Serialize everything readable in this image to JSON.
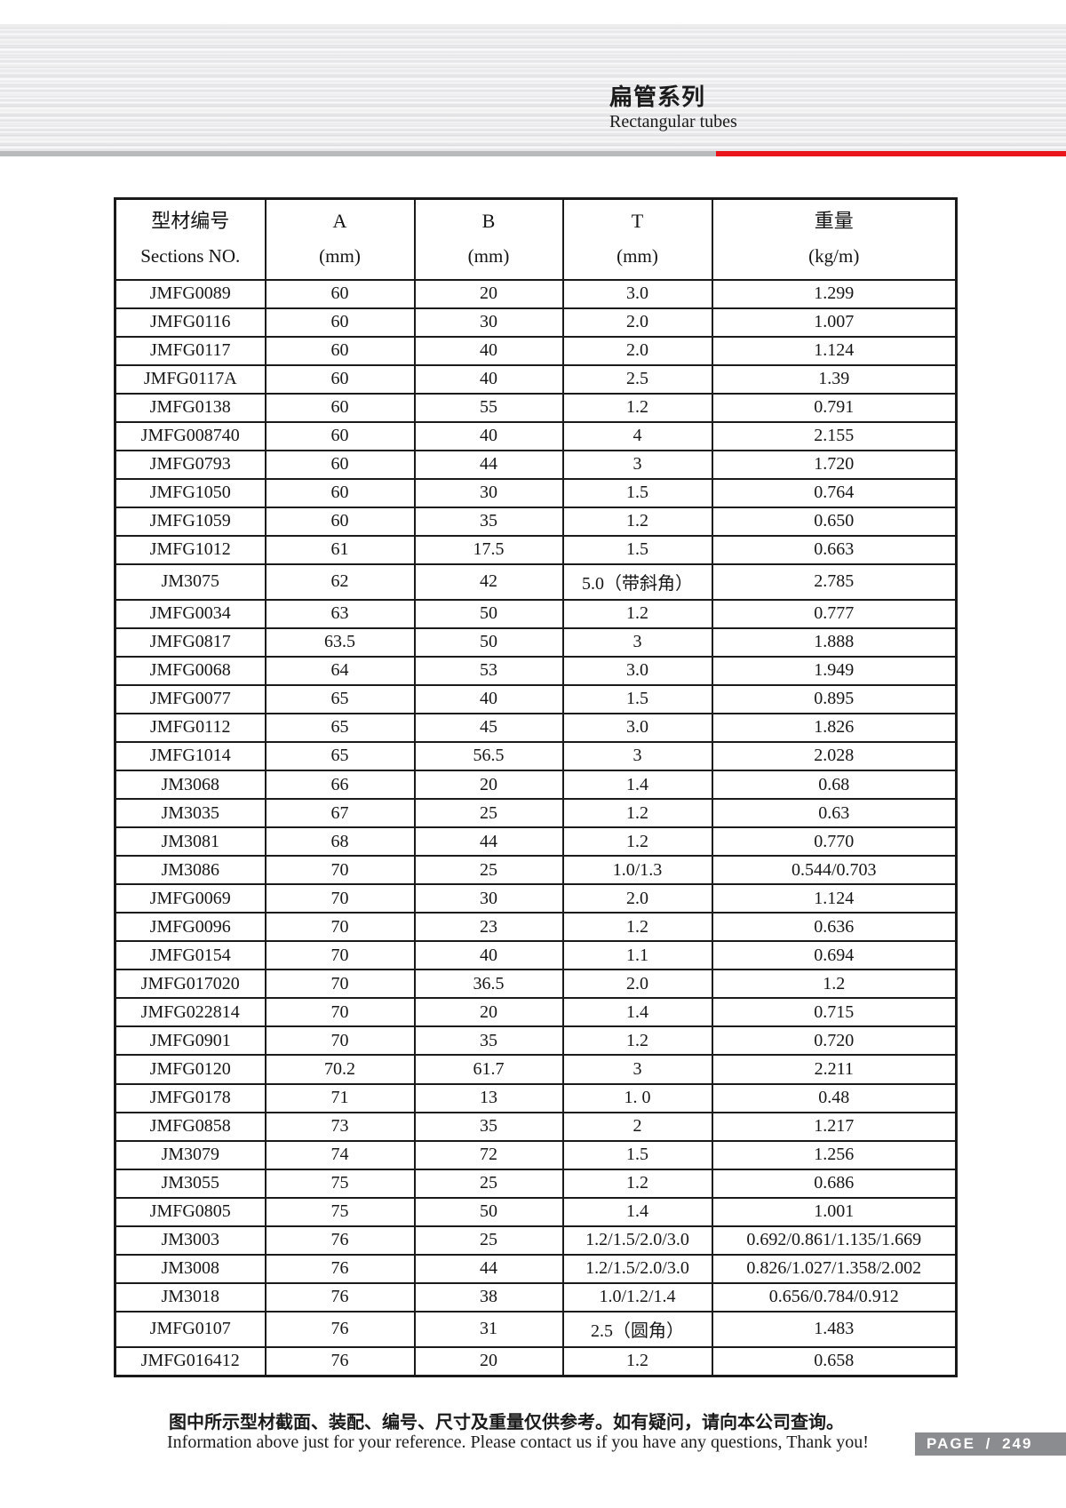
{
  "header": {
    "title_cn": "扁管系列",
    "title_en": "Rectangular tubes"
  },
  "table": {
    "columns": [
      {
        "line1": "型材编号",
        "line2": "Sections NO."
      },
      {
        "line1": "A",
        "line2": "(mm)"
      },
      {
        "line1": "B",
        "line2": "(mm)"
      },
      {
        "line1": "T",
        "line2": "(mm)"
      },
      {
        "line1": "重量",
        "line2": "(kg/m)"
      }
    ],
    "rows": [
      [
        "JMFG0089",
        "60",
        "20",
        "3.0",
        "1.299"
      ],
      [
        "JMFG0116",
        "60",
        "30",
        "2.0",
        "1.007"
      ],
      [
        "JMFG0117",
        "60",
        "40",
        "2.0",
        "1.124"
      ],
      [
        "JMFG0117A",
        "60",
        "40",
        "2.5",
        "1.39"
      ],
      [
        "JMFG0138",
        "60",
        "55",
        "1.2",
        "0.791"
      ],
      [
        "JMFG008740",
        "60",
        "40",
        "4",
        "2.155"
      ],
      [
        "JMFG0793",
        "60",
        "44",
        "3",
        "1.720"
      ],
      [
        "JMFG1050",
        "60",
        "30",
        "1.5",
        "0.764"
      ],
      [
        "JMFG1059",
        "60",
        "35",
        "1.2",
        "0.650"
      ],
      [
        "JMFG1012",
        "61",
        "17.5",
        "1.5",
        "0.663"
      ],
      [
        "JM3075",
        "62",
        "42",
        "5.0（带斜角）",
        "2.785"
      ],
      [
        "JMFG0034",
        "63",
        "50",
        "1.2",
        "0.777"
      ],
      [
        "JMFG0817",
        "63.5",
        "50",
        "3",
        "1.888"
      ],
      [
        "JMFG0068",
        "64",
        "53",
        "3.0",
        "1.949"
      ],
      [
        "JMFG0077",
        "65",
        "40",
        "1.5",
        "0.895"
      ],
      [
        "JMFG0112",
        "65",
        "45",
        "3.0",
        "1.826"
      ],
      [
        "JMFG1014",
        "65",
        "56.5",
        "3",
        "2.028"
      ],
      [
        "JM3068",
        "66",
        "20",
        "1.4",
        "0.68"
      ],
      [
        "JM3035",
        "67",
        "25",
        "1.2",
        "0.63"
      ],
      [
        "JM3081",
        "68",
        "44",
        "1.2",
        "0.770"
      ],
      [
        "JM3086",
        "70",
        "25",
        "1.0/1.3",
        "0.544/0.703"
      ],
      [
        "JMFG0069",
        "70",
        "30",
        "2.0",
        "1.124"
      ],
      [
        "JMFG0096",
        "70",
        "23",
        "1.2",
        "0.636"
      ],
      [
        "JMFG0154",
        "70",
        "40",
        "1.1",
        "0.694"
      ],
      [
        "JMFG017020",
        "70",
        "36.5",
        "2.0",
        "1.2"
      ],
      [
        "JMFG022814",
        "70",
        "20",
        "1.4",
        "0.715"
      ],
      [
        "JMFG0901",
        "70",
        "35",
        "1.2",
        "0.720"
      ],
      [
        "JMFG0120",
        "70.2",
        "61.7",
        "3",
        "2.211"
      ],
      [
        "JMFG0178",
        "71",
        "13",
        "1. 0",
        "0.48"
      ],
      [
        "JMFG0858",
        "73",
        "35",
        "2",
        "1.217"
      ],
      [
        "JM3079",
        "74",
        "72",
        "1.5",
        "1.256"
      ],
      [
        "JM3055",
        "75",
        "25",
        "1.2",
        "0.686"
      ],
      [
        "JMFG0805",
        "75",
        "50",
        "1.4",
        "1.001"
      ],
      [
        "JM3003",
        "76",
        "25",
        "1.2/1.5/2.0/3.0",
        "0.692/0.861/1.135/1.669"
      ],
      [
        "JM3008",
        "76",
        "44",
        "1.2/1.5/2.0/3.0",
        "0.826/1.027/1.358/2.002"
      ],
      [
        "JM3018",
        "76",
        "38",
        "1.0/1.2/1.4",
        "0.656/0.784/0.912"
      ],
      [
        "JMFG0107",
        "76",
        "31",
        "2.5（圆角）",
        "1.483"
      ],
      [
        "JMFG016412",
        "76",
        "20",
        "1.2",
        "0.658"
      ]
    ]
  },
  "footer": {
    "note_cn": "图中所示型材截面、装配、编号、尺寸及重量仅供参考。如有疑问，请向本公司查询。",
    "note_en": "Information above just for your reference. Please contact us if you have any questions, Thank you!",
    "page_label": "PAGE / 249"
  },
  "colors": {
    "divider_gray": "#b9babc",
    "accent_red": "#e9151b",
    "page_badge_gray": "#8a8c8f"
  }
}
